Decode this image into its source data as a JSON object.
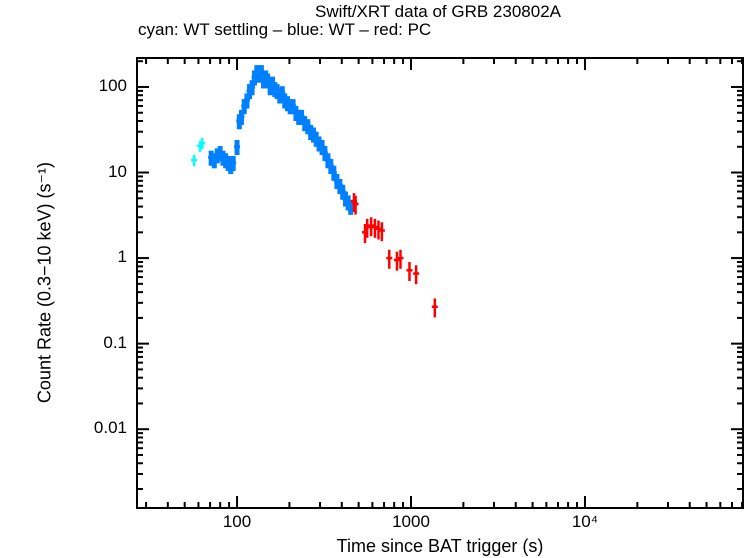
{
  "chart_data": {
    "type": "scatter",
    "title": "Swift/XRT data of GRB 230802A",
    "subtitle": "cyan: WT settling – blue: WT – red: PC",
    "xlabel": "Time since BAT trigger (s)",
    "ylabel": "Count Rate (0.3−10 keV) (s⁻¹)",
    "xscale": "log",
    "yscale": "log",
    "xlim": [
      26.6,
      81000
    ],
    "ylim": [
      0.0012,
      218
    ],
    "grid": false,
    "xticks": [
      {
        "value": 100,
        "label": "100"
      },
      {
        "value": 1000,
        "label": "1000"
      },
      {
        "value": 10000,
        "label": "10⁴"
      }
    ],
    "yticks": [
      {
        "value": 100,
        "label": "100"
      },
      {
        "value": 10,
        "label": "10"
      },
      {
        "value": 1,
        "label": "1"
      },
      {
        "value": 0.1,
        "label": "0.1"
      },
      {
        "value": 0.01,
        "label": "0.01"
      }
    ],
    "series": [
      {
        "mode": "WT settling",
        "color": "#00ffff",
        "rate_err_frac": 0.15,
        "time_err_frac": 0.02,
        "points": [
          [
            56.6,
            14
          ],
          [
            61.3,
            20.5
          ],
          [
            63,
            22
          ]
        ]
      },
      {
        "mode": "WT",
        "color": "#0080ff",
        "rate_err_frac": 0.2,
        "time_err_frac": 0.012,
        "points": [
          [
            71,
            15
          ],
          [
            74,
            14
          ],
          [
            77,
            16
          ],
          [
            80,
            17
          ],
          [
            83,
            15
          ],
          [
            86,
            14
          ],
          [
            89,
            13
          ],
          [
            92,
            12
          ],
          [
            95,
            13
          ],
          [
            100,
            20
          ],
          [
            103,
            40
          ],
          [
            106,
            45
          ],
          [
            110,
            60
          ],
          [
            114,
            70
          ],
          [
            118,
            90
          ],
          [
            122,
            100
          ],
          [
            126,
            130
          ],
          [
            130,
            150
          ],
          [
            134,
            140
          ],
          [
            138,
            150
          ],
          [
            142,
            120
          ],
          [
            146,
            130
          ],
          [
            150,
            120
          ],
          [
            155,
            100
          ],
          [
            160,
            110
          ],
          [
            165,
            95
          ],
          [
            170,
            90
          ],
          [
            176,
            80
          ],
          [
            182,
            85
          ],
          [
            188,
            70
          ],
          [
            195,
            65
          ],
          [
            202,
            60
          ],
          [
            210,
            60
          ],
          [
            218,
            50
          ],
          [
            226,
            45
          ],
          [
            235,
            45
          ],
          [
            245,
            38
          ],
          [
            255,
            35
          ],
          [
            265,
            30
          ],
          [
            275,
            28
          ],
          [
            285,
            25
          ],
          [
            296,
            22
          ],
          [
            308,
            20
          ],
          [
            320,
            17
          ],
          [
            333,
            14
          ],
          [
            346,
            12
          ],
          [
            360,
            10
          ],
          [
            375,
            8
          ],
          [
            390,
            7
          ],
          [
            405,
            6
          ],
          [
            420,
            5
          ],
          [
            435,
            4.5
          ],
          [
            450,
            4
          ]
        ]
      },
      {
        "mode": "PC",
        "color": "#ff0000",
        "rate_err_frac": 0.25,
        "time_err_frac": 0.03,
        "points": [
          [
            470,
            4.6
          ],
          [
            480,
            4.3
          ],
          [
            544,
            2.0
          ],
          [
            560,
            2.3
          ],
          [
            590,
            2.4
          ],
          [
            620,
            2.3
          ],
          [
            650,
            2.2
          ],
          [
            680,
            2.1
          ],
          [
            750,
            1.0
          ],
          [
            830,
            0.95
          ],
          [
            870,
            1.0
          ],
          [
            980,
            0.72
          ],
          [
            1070,
            0.66
          ],
          [
            1370,
            0.27
          ]
        ]
      }
    ]
  }
}
